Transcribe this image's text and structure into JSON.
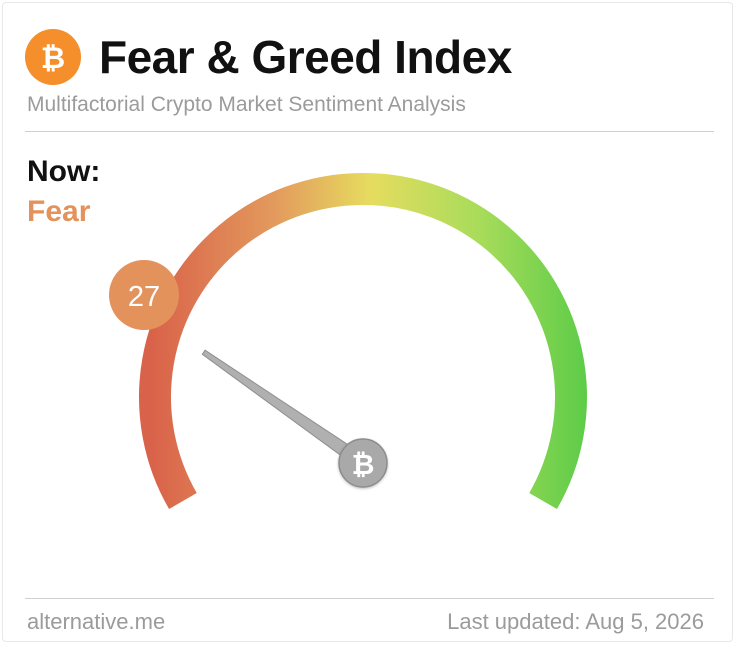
{
  "header": {
    "logo_icon": "bitcoin-icon",
    "title": "Fear & Greed Index",
    "subtitle": "Multifactorial Crypto Market Sentiment Analysis"
  },
  "current": {
    "label": "Now:",
    "classification": "Fear",
    "value": "27",
    "value_numeric": 27,
    "scale_max": 100,
    "classification_color": "#e2925a"
  },
  "gauge": {
    "hub_icon": "bitcoin-icon",
    "colors": {
      "extreme_fear": "#d9634a",
      "fear": "#e39a5d",
      "neutral": "#e6dc5f",
      "greed": "#a8dc5a",
      "extreme_greed": "#5ccc48",
      "badge": "#e2925a",
      "needle": "#b0b0b0"
    }
  },
  "footer": {
    "source": "alternative.me",
    "updated": "Last updated: Aug 5, 2026"
  },
  "colors": {
    "brand_orange": "#f48f2b",
    "muted_text": "#9b9b9b"
  }
}
